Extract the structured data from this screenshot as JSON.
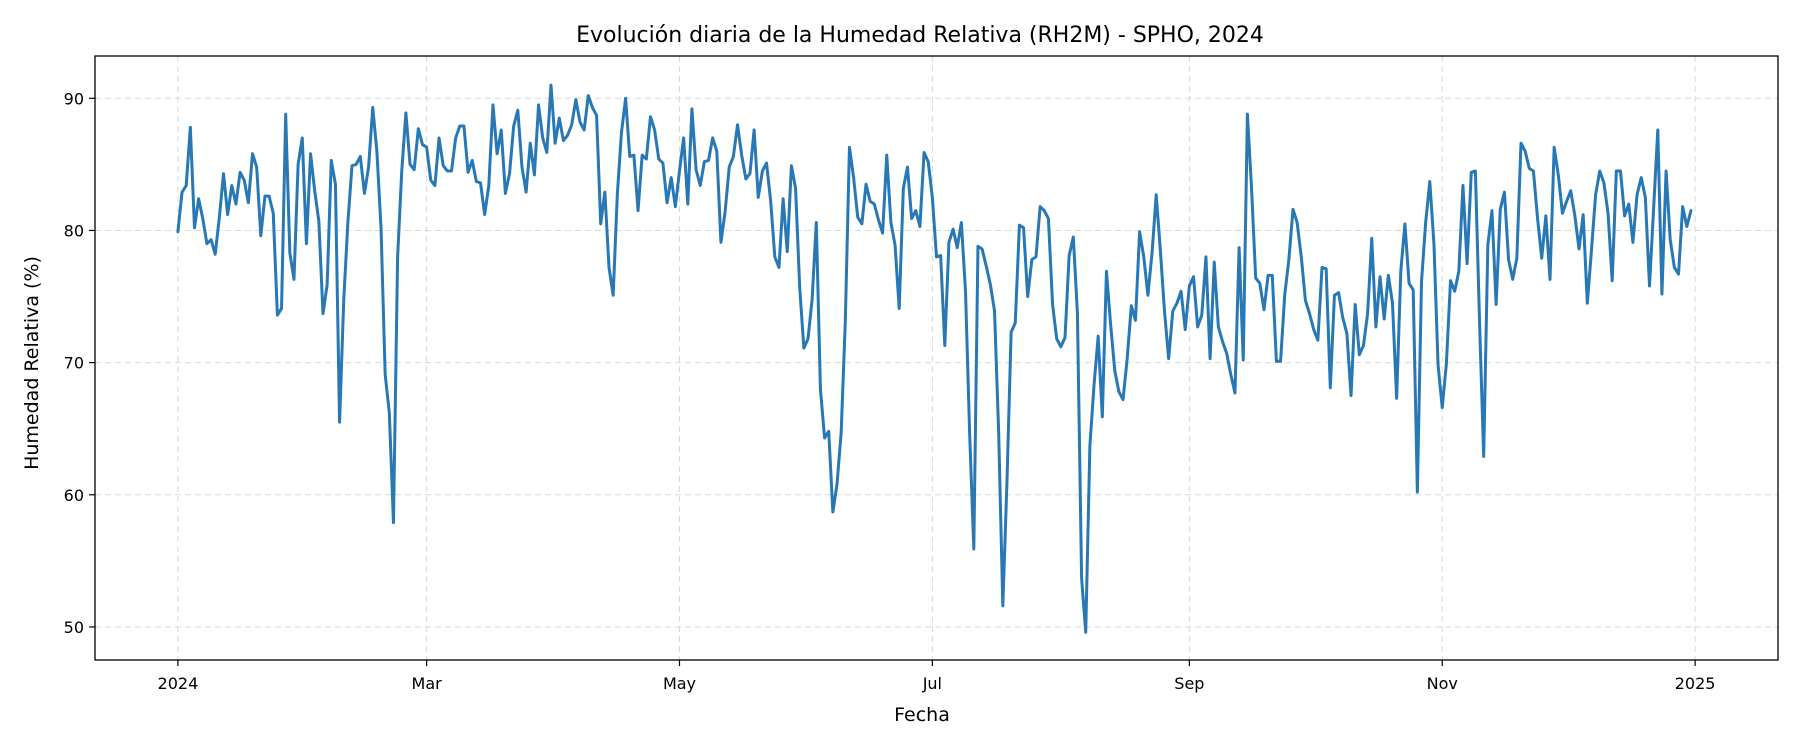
{
  "chart_data": {
    "type": "line",
    "title": "Evolución diaria de la Humedad Relativa (RH2M) - SPHO, 2024",
    "xlabel": "Fecha",
    "ylabel": "Humedad Relativa (%)",
    "ylim": [
      47.5,
      93.2
    ],
    "xlim": [
      "2023-12-12",
      "2025-01-21"
    ],
    "grid": true,
    "x_ticks": [
      {
        "date": "2024-01-01",
        "label": "2024"
      },
      {
        "date": "2024-03-01",
        "label": "Mar"
      },
      {
        "date": "2024-05-01",
        "label": "May"
      },
      {
        "date": "2024-07-01",
        "label": "Jul"
      },
      {
        "date": "2024-09-01",
        "label": "Sep"
      },
      {
        "date": "2024-11-01",
        "label": "Nov"
      },
      {
        "date": "2025-01-01",
        "label": "2025"
      }
    ],
    "y_ticks": [
      50,
      60,
      70,
      80,
      90
    ],
    "series": [
      {
        "color": "#2878b5",
        "x_start": "2024-01-01",
        "x_step_days": 1,
        "values": [
          79.9,
          82.9,
          83.4,
          87.8,
          80.2,
          82.4,
          80.9,
          79.0,
          79.3,
          78.2,
          81.0,
          84.3,
          81.2,
          83.4,
          82.0,
          84.4,
          83.8,
          82.1,
          85.8,
          84.8,
          79.6,
          82.6,
          82.6,
          81.3,
          73.6,
          74.1,
          88.8,
          78.3,
          76.3,
          85.0,
          87.0,
          79.0,
          85.8,
          83.0,
          80.7,
          73.7,
          75.9,
          85.3,
          83.5,
          65.5,
          74.7,
          80.6,
          84.9,
          85.0,
          85.6,
          82.8,
          84.8,
          89.3,
          86.0,
          80.2,
          69.1,
          66.2,
          57.9,
          78.0,
          84.5,
          88.9,
          85.0,
          84.6,
          87.7,
          86.5,
          86.3,
          83.8,
          83.4,
          87.0,
          84.9,
          84.5,
          84.5,
          87.0,
          87.9,
          87.9,
          84.4,
          85.3,
          83.7,
          83.6,
          81.2,
          83.4,
          89.5,
          85.8,
          87.6,
          82.8,
          84.3,
          87.9,
          89.1,
          84.8,
          82.9,
          86.6,
          84.2,
          89.5,
          87.0,
          85.9,
          91.0,
          86.6,
          88.5,
          86.8,
          87.2,
          88.0,
          89.9,
          88.2,
          87.6,
          90.2,
          89.3,
          88.7,
          80.5,
          82.9,
          77.2,
          75.1,
          82.7,
          87.4,
          90.0,
          85.6,
          85.7,
          81.5,
          85.7,
          85.4,
          88.6,
          87.6,
          85.4,
          85.1,
          82.1,
          84.0,
          81.8,
          84.5,
          87.0,
          82.0,
          89.2,
          84.6,
          83.4,
          85.2,
          85.3,
          87.0,
          86.0,
          79.1,
          81.4,
          84.8,
          85.6,
          88.0,
          85.7,
          83.9,
          84.3,
          87.6,
          82.5,
          84.5,
          85.1,
          82.2,
          78.0,
          77.2,
          82.4,
          78.4,
          84.9,
          83.2,
          75.7,
          71.1,
          71.8,
          74.8,
          80.6,
          68.0,
          64.3,
          64.8,
          58.7,
          60.8,
          64.7,
          73.1,
          86.3,
          84.0,
          81.0,
          80.5,
          83.5,
          82.2,
          82.0,
          80.8,
          79.8,
          85.7,
          80.6,
          78.9,
          74.1,
          83.2,
          84.8,
          80.9,
          81.5,
          80.3,
          85.9,
          85.2,
          82.5,
          78.0,
          78.1,
          71.3,
          79.1,
          80.1,
          78.7,
          80.6,
          75.4,
          64.6,
          55.9,
          78.8,
          78.6,
          77.3,
          75.9,
          73.9,
          64.7,
          51.6,
          61.0,
          72.3,
          73.0,
          80.4,
          80.2,
          75.0,
          77.8,
          78.0,
          81.8,
          81.5,
          80.9,
          74.4,
          71.8,
          71.2,
          71.9,
          78.1,
          79.5,
          73.7,
          53.7,
          49.6,
          63.7,
          68.3,
          72.0,
          65.9,
          76.9,
          72.9,
          69.4,
          67.8,
          67.2,
          70.3,
          74.3,
          73.2,
          79.9,
          78.0,
          75.1,
          78.3,
          82.7,
          78.5,
          73.9,
          70.3,
          73.9,
          74.5,
          75.4,
          72.5,
          75.8,
          76.5,
          72.7,
          73.6,
          78.0,
          70.3,
          77.6,
          72.7,
          71.6,
          70.7,
          69.1,
          67.7,
          78.7,
          70.2,
          88.8,
          83.2,
          76.4,
          76.0,
          74.0,
          76.6,
          76.6,
          70.1,
          70.1,
          75.1,
          77.8,
          81.6,
          80.6,
          78.0,
          74.7,
          73.7,
          72.5,
          71.7,
          77.2,
          77.1,
          68.1,
          75.1,
          75.3,
          73.4,
          72.2,
          67.5,
          74.4,
          70.6,
          71.3,
          73.7,
          79.4,
          72.7,
          76.5,
          73.3,
          76.6,
          74.5,
          67.3,
          76.9,
          80.5,
          76.0,
          75.5,
          60.2,
          76.1,
          80.6,
          83.7,
          79.0,
          69.8,
          66.6,
          69.9,
          76.2,
          75.4,
          76.9,
          83.4,
          77.5,
          84.4,
          84.5,
          73.1,
          62.9,
          78.9,
          81.5,
          74.4,
          81.6,
          82.9,
          77.8,
          76.3,
          77.9,
          86.6,
          86.0,
          84.7,
          84.5,
          80.9,
          77.9,
          81.1,
          76.3,
          86.3,
          84.2,
          81.3,
          82.2,
          83.0,
          81.1,
          78.6,
          81.2,
          74.5,
          78.5,
          82.7,
          84.5,
          83.6,
          81.3,
          76.2,
          84.5,
          84.5,
          81.1,
          82.0,
          79.1,
          82.7,
          84.0,
          82.5,
          75.8,
          81.7,
          87.6,
          75.2,
          84.5,
          79.3,
          77.2,
          76.7,
          81.8,
          80.3,
          81.5
        ]
      }
    ]
  }
}
